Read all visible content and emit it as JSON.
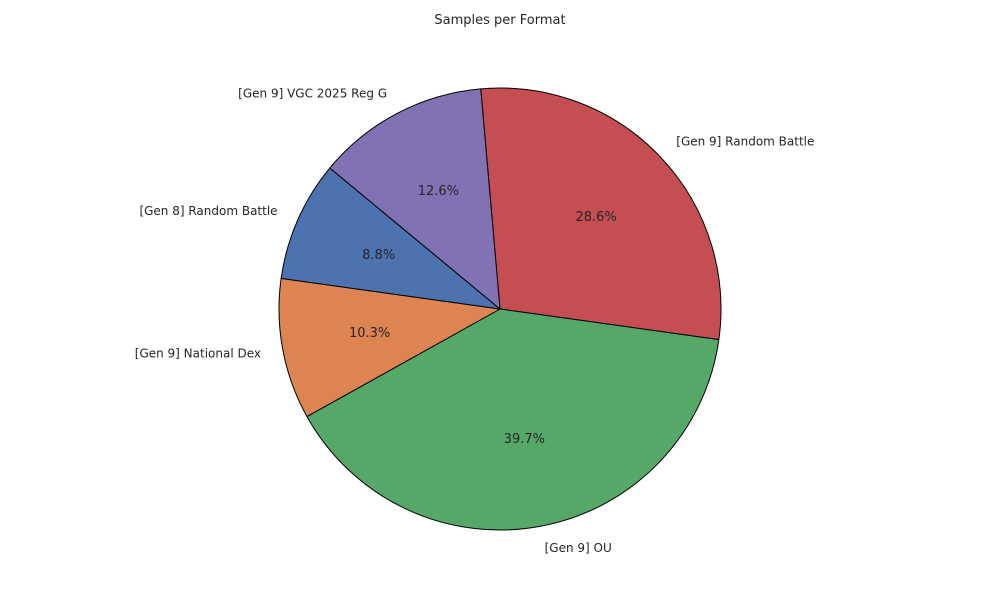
{
  "chart_data": {
    "type": "pie",
    "title": "Samples per Format",
    "start_angle_deg": 95,
    "direction": "clockwise",
    "slices": [
      {
        "label": "[Gen 9] Random Battle",
        "value": 28.6,
        "pct_label": "28.6%",
        "color": "#c44e52"
      },
      {
        "label": "[Gen 9] OU",
        "value": 39.7,
        "pct_label": "39.7%",
        "color": "#55a868"
      },
      {
        "label": "[Gen 9] National Dex",
        "value": 10.3,
        "pct_label": "10.3%",
        "color": "#dd8452"
      },
      {
        "label": "[Gen 8] Random Battle",
        "value": 8.8,
        "pct_label": "8.8%",
        "color": "#4c72b0"
      },
      {
        "label": "[Gen 9] VGC 2025 Reg G",
        "value": 12.6,
        "pct_label": "12.6%",
        "color": "#8172b3"
      }
    ],
    "edge_color": "#000000",
    "text_color": "#262626"
  }
}
